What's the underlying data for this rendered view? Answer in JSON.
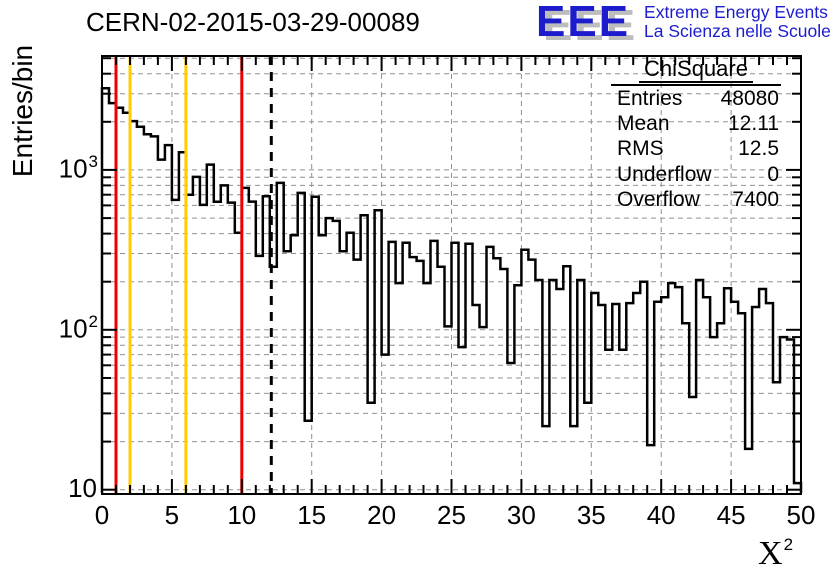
{
  "page": {
    "background": "#ffffff"
  },
  "title": "CERN-02-2015-03-29-00089",
  "logo": {
    "letters": "EEE",
    "line1": "Extreme Energy Events",
    "line2": "La Scienza nelle Scuole",
    "color": "#1c1ccd",
    "shadow_color": "#bdbdbd"
  },
  "stats": {
    "title": "ChiSquare",
    "rows": [
      {
        "label": "Entries",
        "value": "48080"
      },
      {
        "label": "Mean",
        "value": "12.11"
      },
      {
        "label": "RMS",
        "value": "12.5"
      },
      {
        "label": "Underflow",
        "value": "0"
      },
      {
        "label": "Overflow",
        "value": "7400"
      }
    ]
  },
  "axes": {
    "y_title": "Entries/bin",
    "x_title_base": "X",
    "x_title_exp": "2",
    "x_ticks": [
      0,
      5,
      10,
      15,
      20,
      25,
      30,
      35,
      40,
      45,
      50
    ],
    "y_ticks": [
      {
        "value": 10,
        "base": "10",
        "exp": ""
      },
      {
        "value": 100,
        "base": "10",
        "exp": "2"
      },
      {
        "value": 1000,
        "base": "10",
        "exp": "3"
      }
    ]
  },
  "chart_data": {
    "type": "bar",
    "subtype": "histogram-step",
    "title": "CERN-02-2015-03-29-00089",
    "xlabel": "X^2",
    "ylabel": "Entries/bin",
    "y_scale": "log",
    "xlim": [
      0,
      50
    ],
    "ylim": [
      9.4,
      5160
    ],
    "grid": true,
    "grid_color": "#909090",
    "line_color": "#000000",
    "x_start": 0,
    "bin_width": 0.5,
    "values": [
      3240,
      2620,
      2450,
      2280,
      2020,
      1860,
      1670,
      1620,
      1160,
      1430,
      650,
      1290,
      700,
      905,
      604,
      1080,
      633,
      800,
      625,
      405,
      772,
      634,
      290,
      684,
      248,
      830,
      310,
      390,
      718,
      27,
      680,
      390,
      500,
      480,
      310,
      405,
      275,
      520,
      35,
      560,
      70,
      355,
      196,
      350,
      285,
      270,
      196,
      360,
      248,
      105,
      350,
      78,
      345,
      143,
      104,
      330,
      280,
      240,
      62,
      190,
      317,
      275,
      205,
      25,
      205,
      180,
      250,
      25,
      205,
      35,
      170,
      143,
      75,
      145,
      75,
      147,
      170,
      200,
      19,
      150,
      160,
      196,
      185,
      110,
      38,
      205,
      160,
      90,
      110,
      182,
      150,
      127,
      18,
      139,
      180,
      147,
      47,
      90,
      87,
      11
    ],
    "vertical_lines": [
      {
        "x": 1,
        "color": "#ee0000",
        "style": "solid"
      },
      {
        "x": 2,
        "color": "#ffcc00",
        "style": "solid"
      },
      {
        "x": 6,
        "color": "#ffcc00",
        "style": "solid"
      },
      {
        "x": 10,
        "color": "#ee0000",
        "style": "solid"
      },
      {
        "x": 12.11,
        "color": "#000000",
        "style": "dashed"
      }
    ]
  }
}
